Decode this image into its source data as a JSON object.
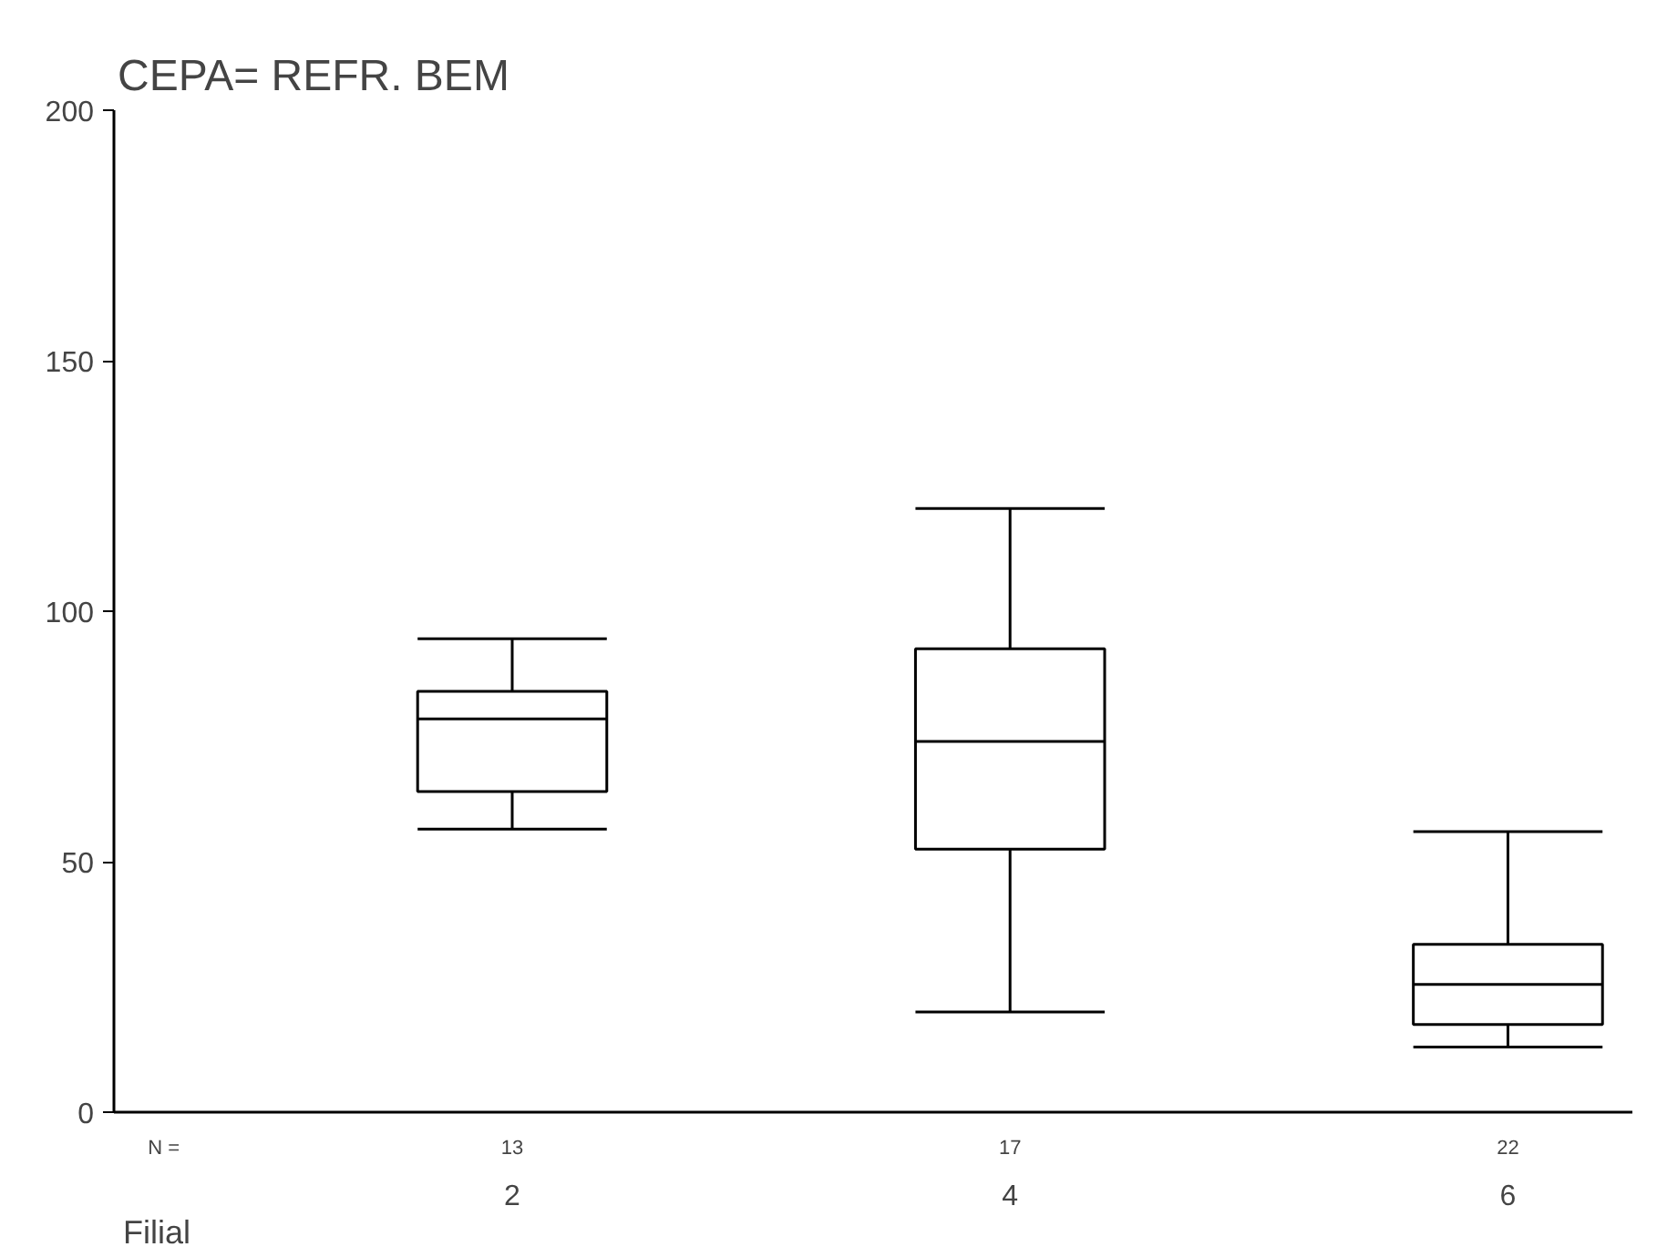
{
  "chart_data": {
    "type": "box",
    "title": "CEPA= REFR. BEM",
    "xlabel": "Filial",
    "categories": [
      "2",
      "4",
      "6"
    ],
    "boxes": [
      {
        "low": 56.5,
        "q1": 64,
        "median": 78.5,
        "q3": 84,
        "high": 94.5
      },
      {
        "low": 20,
        "q1": 52.5,
        "median": 74,
        "q3": 92.5,
        "high": 120.5
      },
      {
        "low": 13,
        "q1": 17.5,
        "median": 25.5,
        "q3": 33.5,
        "high": 56
      }
    ],
    "ylim": [
      0,
      200
    ],
    "yticks": [
      0,
      50,
      100,
      150,
      200
    ],
    "annotations": [
      "N =",
      "13",
      "17",
      "22"
    ],
    "grid": false
  }
}
